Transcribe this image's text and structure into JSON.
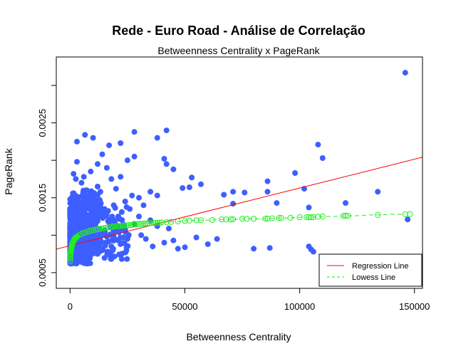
{
  "chart_data": {
    "type": "scatter",
    "title": "Rede - Euro Road - Análise de Correlação",
    "subtitle": "Betweenness Centrality x PageRank",
    "xlabel": "Betweenness Centrality",
    "ylabel": "PageRank",
    "xlim": [
      -6000,
      153500
    ],
    "ylim": [
      0.00029,
      0.00338
    ],
    "x_ticks": [
      0,
      50000,
      100000,
      150000
    ],
    "x_tick_labels": [
      "0",
      "50000",
      "100000",
      "150000"
    ],
    "y_ticks": [
      0.0005,
      0.0015,
      0.0025
    ],
    "y_tick_labels": [
      "0.0005",
      "0.0015",
      "0.0025"
    ],
    "y_minor_ticks": [
      0.001,
      0.002,
      0.003
    ],
    "grid": false,
    "legend": {
      "position": "bottom-right",
      "entries": [
        {
          "label": "Regression Line",
          "color": "#ff0000",
          "style": "solid"
        },
        {
          "label": "Lowess Line",
          "color": "#00ff00",
          "style": "dashed"
        }
      ]
    },
    "colors": {
      "points": "#3d5fff",
      "regression": "#ff0000",
      "lowess": "#22ee22"
    },
    "series": [
      {
        "role": "points",
        "points": [
          [
            146000,
            0.00317
          ],
          [
            6500,
            0.00234
          ],
          [
            28000,
            0.00238
          ],
          [
            42000,
            0.0024
          ],
          [
            108000,
            0.00221
          ],
          [
            38000,
            0.0023
          ],
          [
            3000,
            0.00225
          ],
          [
            10000,
            0.0023
          ],
          [
            17000,
            0.0022
          ],
          [
            22000,
            0.00223
          ],
          [
            41000,
            0.00202
          ],
          [
            42000,
            0.00195
          ],
          [
            45000,
            0.00188
          ],
          [
            28000,
            0.00205
          ],
          [
            25000,
            0.002
          ],
          [
            14000,
            0.00208
          ],
          [
            3000,
            0.00198
          ],
          [
            110000,
            0.00203
          ],
          [
            98000,
            0.00183
          ],
          [
            102000,
            0.00162
          ],
          [
            86000,
            0.00172
          ],
          [
            86000,
            0.00158
          ],
          [
            76000,
            0.00157
          ],
          [
            71000,
            0.00158
          ],
          [
            67000,
            0.00154
          ],
          [
            57000,
            0.00168
          ],
          [
            71000,
            0.00142
          ],
          [
            53000,
            0.00177
          ],
          [
            52000,
            0.00164
          ],
          [
            49000,
            0.00163
          ],
          [
            90000,
            0.00143
          ],
          [
            104000,
            0.00137
          ],
          [
            120000,
            0.00143
          ],
          [
            134000,
            0.00158
          ],
          [
            147000,
            0.00121
          ],
          [
            104000,
            0.00085
          ],
          [
            105000,
            0.00081
          ],
          [
            106000,
            0.00078
          ],
          [
            80000,
            0.00082
          ],
          [
            87000,
            0.00083
          ],
          [
            60000,
            0.00088
          ],
          [
            64000,
            0.00095
          ],
          [
            55000,
            0.00097
          ],
          [
            50000,
            0.00084
          ],
          [
            47000,
            0.00082
          ],
          [
            45000,
            0.00093
          ],
          [
            41000,
            0.0009
          ],
          [
            36000,
            0.00085
          ],
          [
            33000,
            0.00095
          ],
          [
            31000,
            0.001
          ],
          [
            38000,
            0.00112
          ],
          [
            43000,
            0.00109
          ],
          [
            35000,
            0.0012
          ],
          [
            30000,
            0.0015
          ],
          [
            32000,
            0.0014
          ],
          [
            27000,
            0.00153
          ],
          [
            35000,
            0.00158
          ],
          [
            38000,
            0.00153
          ],
          [
            22000,
            0.00178
          ],
          [
            18000,
            0.00175
          ],
          [
            16000,
            0.0019
          ],
          [
            12000,
            0.00195
          ],
          [
            9000,
            0.00185
          ],
          [
            12000,
            0.00165
          ],
          [
            20000,
            0.00162
          ],
          [
            24000,
            0.00145
          ],
          [
            26000,
            0.00135
          ],
          [
            21000,
            0.00125
          ],
          [
            17000,
            0.00117
          ],
          [
            15000,
            0.00135
          ],
          [
            19000,
            0.0014
          ],
          [
            28000,
            0.00115
          ],
          [
            30000,
            0.00125
          ],
          [
            25000,
            0.00095
          ],
          [
            22000,
            0.00088
          ],
          [
            18000,
            0.00085
          ],
          [
            14000,
            0.00082
          ],
          [
            13000,
            0.0009
          ],
          [
            12000,
            0.00075
          ],
          [
            10000,
            0.00082
          ],
          [
            8000,
            0.00078
          ],
          [
            6000,
            0.00074
          ],
          [
            5000,
            0.00085
          ],
          [
            16000,
            0.00098
          ],
          [
            20000,
            0.00105
          ],
          [
            24000,
            0.00108
          ],
          [
            11000,
            0.0012
          ],
          [
            9000,
            0.0015
          ],
          [
            7000,
            0.0016
          ],
          [
            5000,
            0.0017
          ],
          [
            2500,
            0.00175
          ],
          [
            1500,
            0.00182
          ],
          [
            6000,
            0.00178
          ],
          [
            8000,
            0.0014
          ],
          [
            4000,
            0.00145
          ],
          [
            2000,
            0.0015
          ]
        ]
      },
      {
        "role": "regression",
        "name": "Regression Line",
        "intercept": 0.00086,
        "slope": 7.7e-09
      },
      {
        "role": "lowess",
        "name": "Lowess Line",
        "x": [
          0,
          100,
          200,
          400,
          700,
          1000,
          1500,
          2000,
          3000,
          4000,
          5000,
          7000,
          9000,
          12000,
          16000,
          20000,
          25000,
          30000,
          35000,
          40000,
          45000,
          50000,
          55000,
          60000,
          65000,
          70000,
          75000,
          80000,
          85000,
          90000,
          95000,
          100000,
          105000,
          110000,
          115000,
          120000,
          125000,
          130000,
          135000,
          140000,
          146000
        ],
        "y": [
          0.00065,
          0.0007,
          0.00074,
          0.0008,
          0.00085,
          0.00089,
          0.00092,
          0.00095,
          0.00098,
          0.001,
          0.00102,
          0.00104,
          0.00106,
          0.00108,
          0.0011,
          0.00112,
          0.00113,
          0.00115,
          0.00116,
          0.00117,
          0.00118,
          0.00119,
          0.0012,
          0.0012,
          0.00121,
          0.00121,
          0.00122,
          0.00122,
          0.00122,
          0.00123,
          0.00123,
          0.00124,
          0.00124,
          0.00125,
          0.00125,
          0.00126,
          0.00126,
          0.00127,
          0.00127,
          0.00128,
          0.00128
        ]
      }
    ]
  }
}
